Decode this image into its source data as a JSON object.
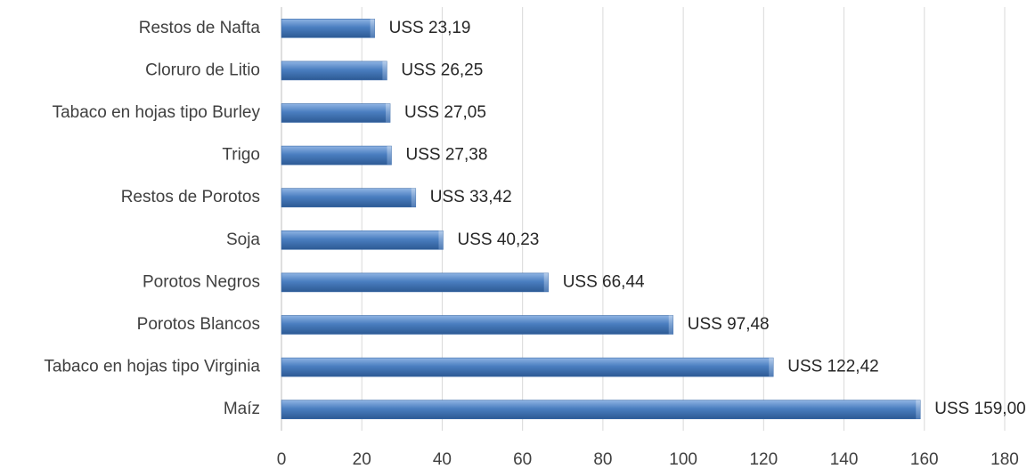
{
  "chart_data": {
    "type": "bar",
    "orientation": "horizontal",
    "categories": [
      "Restos de Nafta",
      "Cloruro de Litio",
      "Tabaco en hojas tipo Burley",
      "Trigo",
      "Restos de Porotos",
      "Soja",
      "Porotos Negros",
      "Porotos Blancos",
      "Tabaco en hojas tipo Virginia",
      "Maíz"
    ],
    "values": [
      23.19,
      26.25,
      27.05,
      27.38,
      33.42,
      40.23,
      66.44,
      97.48,
      122.42,
      159.0
    ],
    "data_labels": [
      "USS 23,19",
      "USS 26,25",
      "USS 27,05",
      "USS 27,38",
      "USS 33,42",
      "USS 40,23",
      "USS 66,44",
      "USS 97,48",
      "USS 122,42",
      "USS 159,00"
    ],
    "xlim": [
      0,
      180
    ],
    "xticks": [
      "0",
      "20",
      "40",
      "60",
      "80",
      "100",
      "120",
      "140",
      "160",
      "180"
    ],
    "grid": "vertical",
    "legend": "none",
    "bar_color": "#4a7ec0",
    "bar_color_light": "#8fb4e3",
    "bar_color_dark": "#2d5a94"
  }
}
